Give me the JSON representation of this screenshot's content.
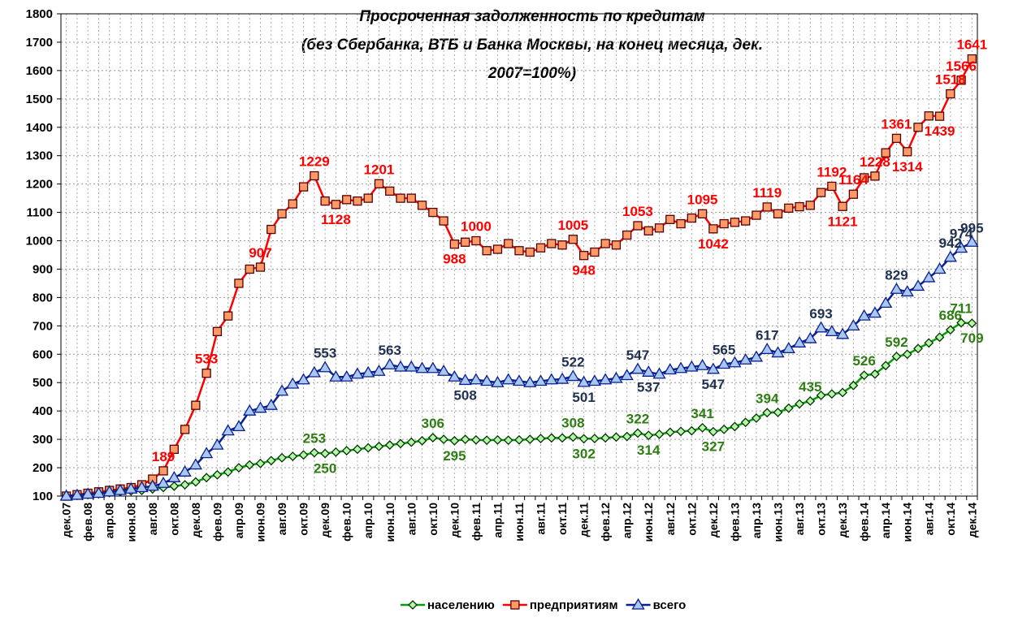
{
  "chart_data": {
    "type": "line",
    "title": [
      "Просроченная задолженность по кредитам",
      "(без Сбербанка, ВТБ и Банка Москвы, на конец месяца, дек.",
      "2007=100%)"
    ],
    "categories": [
      "дек.07",
      null,
      "фев.08",
      null,
      "апр.08",
      null,
      "июн.08",
      null,
      "авг.08",
      null,
      "окт.08",
      null,
      "дек.08",
      null,
      "фев.09",
      null,
      "апр.09",
      null,
      "июн.09",
      null,
      "авг.09",
      null,
      "окт.09",
      null,
      "дек.09",
      null,
      "фев.10",
      null,
      "апр.10",
      null,
      "июн.10",
      null,
      "авг.10",
      null,
      "окт.10",
      null,
      "дек.10",
      null,
      "фев.11",
      null,
      "апр.11",
      null,
      "июн.11",
      null,
      "авг.11",
      null,
      "окт.11",
      null,
      "дек.11",
      null,
      "фев.12",
      null,
      "апр.12",
      null,
      "июн.12",
      null,
      "авг.12",
      null,
      "окт.12",
      null,
      "дек.12",
      null,
      "фев.13",
      null,
      "апр.13",
      null,
      "июн.13",
      null,
      "авг.13",
      null,
      "окт.13",
      null,
      "дек.13",
      null,
      "фев.14",
      null,
      "апр.14",
      null,
      "июн.14",
      null,
      "авг.14",
      null,
      "окт.14",
      null,
      "дек.14"
    ],
    "series": [
      {
        "name": "населению",
        "color": "#00a000",
        "marker": "diamond",
        "marker_fill": "#b5f5a8",
        "label_color": "#2e7d12",
        "values": [
          100,
          102,
          105,
          108,
          112,
          115,
          118,
          120,
          125,
          130,
          135,
          140,
          150,
          165,
          175,
          185,
          200,
          210,
          215,
          225,
          235,
          240,
          245,
          253,
          250,
          255,
          260,
          265,
          270,
          275,
          280,
          285,
          290,
          295,
          306,
          300,
          295,
          300,
          298,
          297,
          298,
          297,
          298,
          300,
          303,
          305,
          305,
          308,
          302,
          303,
          305,
          308,
          310,
          322,
          314,
          318,
          325,
          328,
          330,
          341,
          327,
          335,
          345,
          360,
          375,
          394,
          395,
          410,
          425,
          435,
          455,
          460,
          465,
          490,
          526,
          530,
          560,
          592,
          600,
          620,
          640,
          660,
          686,
          711,
          709
        ],
        "value_labels": [
          null,
          null,
          null,
          null,
          null,
          null,
          null,
          null,
          null,
          null,
          null,
          null,
          null,
          null,
          null,
          null,
          null,
          null,
          null,
          null,
          null,
          null,
          null,
          "253",
          "250",
          null,
          null,
          null,
          null,
          null,
          null,
          null,
          null,
          null,
          "306",
          null,
          "295",
          null,
          null,
          null,
          null,
          null,
          null,
          null,
          null,
          null,
          null,
          "308",
          "302",
          null,
          null,
          null,
          null,
          "322",
          "314",
          null,
          null,
          null,
          null,
          "341",
          "327",
          null,
          null,
          null,
          null,
          "394",
          null,
          null,
          null,
          "435",
          null,
          null,
          null,
          null,
          "526",
          null,
          null,
          "592",
          null,
          null,
          null,
          null,
          "686",
          "711",
          "709"
        ]
      },
      {
        "name": "предприятиям",
        "color": "#ff0000",
        "marker": "square",
        "marker_fill": "#ff9966",
        "label_color": "#ff0000",
        "values": [
          100,
          105,
          110,
          115,
          120,
          125,
          130,
          140,
          160,
          189,
          265,
          335,
          420,
          533,
          680,
          735,
          850,
          900,
          907,
          1040,
          1095,
          1130,
          1190,
          1229,
          1140,
          1128,
          1145,
          1140,
          1150,
          1201,
          1175,
          1150,
          1150,
          1125,
          1100,
          1070,
          988,
          995,
          1000,
          965,
          970,
          990,
          965,
          960,
          975,
          990,
          985,
          1005,
          948,
          960,
          990,
          985,
          1020,
          1053,
          1035,
          1045,
          1075,
          1060,
          1080,
          1095,
          1042,
          1060,
          1065,
          1070,
          1090,
          1119,
          1095,
          1115,
          1120,
          1125,
          1170,
          1192,
          1121,
          1164,
          1222,
          1228,
          1310,
          1361,
          1314,
          1400,
          1440,
          1439,
          1518,
          1566,
          1641
        ],
        "value_labels": [
          null,
          null,
          null,
          null,
          null,
          null,
          null,
          null,
          null,
          "189",
          null,
          null,
          null,
          "533",
          null,
          null,
          null,
          null,
          "907",
          null,
          null,
          null,
          null,
          "1229",
          null,
          "1128",
          null,
          null,
          null,
          "1201",
          null,
          null,
          null,
          null,
          null,
          null,
          "988",
          null,
          "1000",
          null,
          null,
          null,
          null,
          null,
          null,
          null,
          null,
          "1005",
          "948",
          null,
          null,
          null,
          null,
          "1053",
          null,
          null,
          null,
          null,
          null,
          "1095",
          "1042",
          null,
          null,
          null,
          null,
          "1119",
          null,
          null,
          null,
          null,
          null,
          "1192",
          "1121",
          "1164",
          null,
          "1228",
          null,
          "1361",
          "1314",
          null,
          null,
          "1439",
          "1518",
          "1566",
          "1641"
        ]
      },
      {
        "name": "всего",
        "color": "#0a1f8f",
        "marker": "triangle",
        "marker_fill": "#a8c8f0",
        "label_color": "#1f3050",
        "values": [
          100,
          103,
          107,
          110,
          115,
          120,
          125,
          130,
          135,
          145,
          165,
          185,
          210,
          250,
          280,
          330,
          345,
          400,
          410,
          420,
          470,
          495,
          510,
          535,
          553,
          520,
          520,
          530,
          535,
          540,
          563,
          555,
          555,
          550,
          550,
          540,
          520,
          508,
          510,
          505,
          500,
          510,
          505,
          500,
          505,
          510,
          512,
          522,
          501,
          505,
          510,
          515,
          525,
          547,
          537,
          530,
          545,
          550,
          555,
          560,
          547,
          565,
          570,
          580,
          590,
          617,
          605,
          620,
          640,
          655,
          693,
          680,
          670,
          700,
          735,
          745,
          780,
          829,
          820,
          840,
          870,
          900,
          942,
          974,
          995
        ],
        "value_labels": [
          null,
          null,
          null,
          null,
          null,
          null,
          null,
          null,
          null,
          null,
          null,
          null,
          null,
          null,
          null,
          null,
          null,
          null,
          null,
          null,
          null,
          null,
          null,
          null,
          "553",
          null,
          null,
          null,
          null,
          null,
          "563",
          null,
          null,
          null,
          null,
          null,
          null,
          "508",
          null,
          null,
          null,
          null,
          null,
          null,
          null,
          null,
          null,
          "522",
          "501",
          null,
          null,
          null,
          null,
          "547",
          "537",
          null,
          null,
          null,
          null,
          null,
          "547",
          "565",
          null,
          null,
          null,
          "617",
          null,
          null,
          null,
          null,
          "693",
          null,
          null,
          null,
          null,
          null,
          null,
          "829",
          null,
          null,
          null,
          null,
          "942",
          "974",
          "995"
        ]
      }
    ],
    "ylim": [
      100,
      1800
    ],
    "yticks": [
      100,
      200,
      300,
      400,
      500,
      600,
      700,
      800,
      900,
      1000,
      1100,
      1200,
      1300,
      1400,
      1500,
      1600,
      1700,
      1800
    ],
    "grid": true,
    "legend": "bottom"
  }
}
